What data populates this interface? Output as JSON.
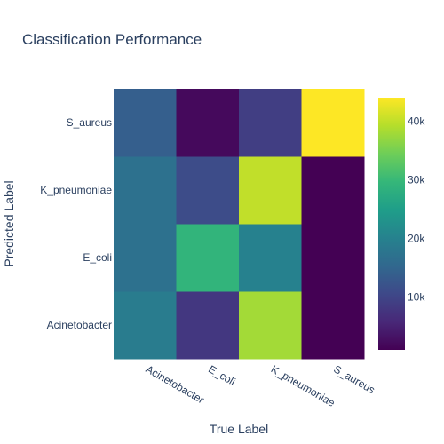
{
  "chart_data": {
    "type": "heatmap",
    "title": "Classification Performance",
    "xlabel": "True Label",
    "ylabel": "Predicted Label",
    "x_categories": [
      "Acinetobacter",
      "E_coli",
      "K_pneumoniae",
      "S_aureus"
    ],
    "y_categories": [
      "Acinetobacter",
      "E_coli",
      "K_pneumoniae",
      "S_aureus"
    ],
    "z": [
      [
        19000,
        8000,
        38000,
        1000
      ],
      [
        17000,
        29000,
        20000,
        1000
      ],
      [
        17000,
        11000,
        40000,
        1000
      ],
      [
        14000,
        2000,
        9000,
        44000
      ]
    ],
    "colorscale": "Viridis",
    "zrange": [
      1000,
      44000
    ],
    "colorbar_ticks": [
      10000,
      20000,
      30000,
      40000
    ],
    "colorbar_tick_labels": [
      "10k",
      "20k",
      "30k",
      "40k"
    ]
  }
}
